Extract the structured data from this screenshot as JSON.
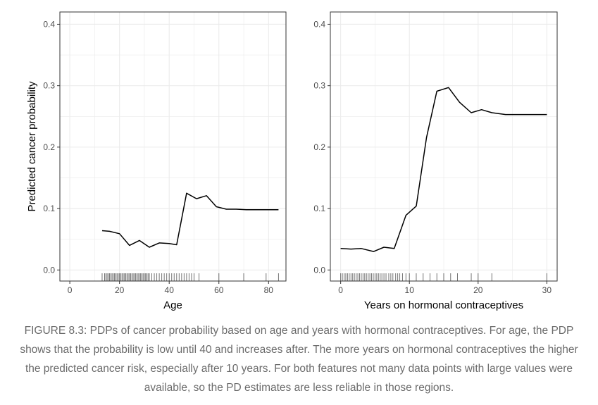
{
  "chart_data": [
    {
      "type": "line",
      "title": "",
      "xlabel": "Age",
      "ylabel": "Predicted cancer probability",
      "xlim": [
        -4,
        87
      ],
      "ylim": [
        -0.018,
        0.42
      ],
      "xticks": [
        0,
        20,
        40,
        60,
        80
      ],
      "yticks": [
        0.0,
        0.1,
        0.2,
        0.3,
        0.4
      ],
      "ytick_labels": [
        "0.0",
        "0.1",
        "0.2",
        "0.3",
        "0.4"
      ],
      "grid": true,
      "series": [
        {
          "x": [
            13,
            16,
            20,
            24,
            28,
            32,
            36,
            40,
            43,
            47,
            51,
            55,
            59,
            63,
            67,
            71,
            75,
            79,
            84
          ],
          "y": [
            0.064,
            0.063,
            0.059,
            0.04,
            0.048,
            0.037,
            0.044,
            0.043,
            0.041,
            0.125,
            0.116,
            0.121,
            0.103,
            0.099,
            0.099,
            0.098,
            0.098,
            0.098,
            0.098
          ]
        }
      ],
      "rug": [
        13,
        14,
        14.5,
        15,
        15.5,
        16,
        16.5,
        17,
        17.5,
        18,
        18.5,
        19,
        19.5,
        20,
        20.5,
        21,
        21.5,
        22,
        22.5,
        23,
        23.5,
        24,
        24.5,
        25,
        25.5,
        26,
        26.5,
        27,
        27.5,
        28,
        28.5,
        29,
        29.5,
        30,
        30.5,
        31,
        31.5,
        32,
        33,
        34,
        35,
        36,
        37,
        38,
        39,
        40,
        41,
        42,
        43,
        44,
        45,
        46,
        47,
        48,
        49,
        50,
        52,
        60,
        70,
        79,
        84
      ]
    },
    {
      "type": "line",
      "title": "",
      "xlabel": "Years on hormonal contraceptives",
      "ylabel": "",
      "xlim": [
        -1.5,
        31.5
      ],
      "ylim": [
        -0.018,
        0.42
      ],
      "xticks": [
        0,
        10,
        20,
        30
      ],
      "yticks": [
        0.0,
        0.1,
        0.2,
        0.3,
        0.4
      ],
      "ytick_labels": [
        "0.0",
        "0.1",
        "0.2",
        "0.3",
        "0.4"
      ],
      "grid": true,
      "series": [
        {
          "x": [
            0,
            1.5,
            3,
            4.8,
            6.3,
            7.8,
            9.5,
            11,
            12.5,
            14,
            15.7,
            17.3,
            19,
            20.5,
            22,
            24,
            26,
            28,
            30
          ],
          "y": [
            0.035,
            0.034,
            0.035,
            0.03,
            0.037,
            0.035,
            0.089,
            0.104,
            0.216,
            0.291,
            0.297,
            0.273,
            0.256,
            0.261,
            0.256,
            0.253,
            0.253,
            0.253,
            0.253
          ]
        }
      ],
      "rug": [
        0,
        0.25,
        0.5,
        0.75,
        1,
        1.25,
        1.5,
        1.75,
        2,
        2.25,
        2.5,
        2.75,
        3,
        3.25,
        3.5,
        3.75,
        4,
        4.25,
        4.5,
        4.75,
        5,
        5.25,
        5.5,
        5.75,
        6,
        6.3,
        6.6,
        7,
        7.3,
        7.6,
        8,
        8.3,
        8.6,
        9,
        9.5,
        10,
        11,
        12,
        13,
        14,
        15,
        16,
        17,
        19,
        20,
        22,
        30
      ]
    }
  ],
  "caption": "FIGURE 8.3: PDPs of cancer probability based on age and years with hormonal contraceptives. For age, the PDP shows that the probability is low until 40 and increases after. The more years on hormonal contraceptives the higher the predicted cancer risk, especially after 10 years. For both features not many data points with large values were available, so the PD estimates are less reliable in those regions.",
  "colors": {
    "line": "#000000",
    "grid": "#ebebeb",
    "panel_border": "#333333",
    "rug": "#000000",
    "caption_text": "#6b6b6b"
  }
}
